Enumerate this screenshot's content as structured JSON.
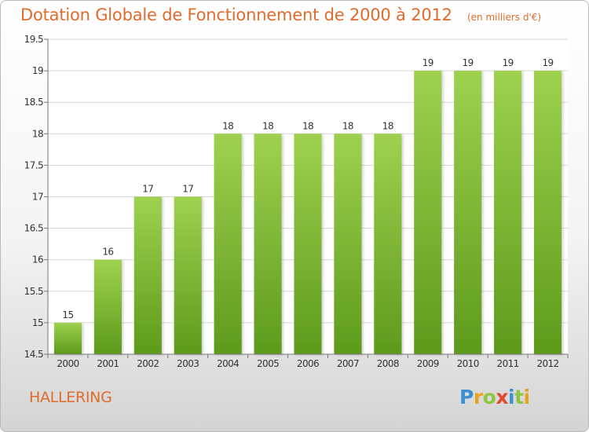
{
  "chart_data": {
    "type": "bar",
    "title": "Dotation Globale de Fonctionnement de 2000 à 2012",
    "subtitle": "(en milliers d'€)",
    "categories": [
      "2000",
      "2001",
      "2002",
      "2003",
      "2004",
      "2005",
      "2006",
      "2007",
      "2008",
      "2009",
      "2010",
      "2011",
      "2012"
    ],
    "values": [
      15,
      16,
      17,
      17,
      18,
      18,
      18,
      18,
      18,
      19,
      19,
      19,
      19
    ],
    "data_labels": [
      "15",
      "16",
      "17",
      "17",
      "18",
      "18",
      "18",
      "18",
      "18",
      "19",
      "19",
      "19",
      "19"
    ],
    "ylim": [
      14.5,
      19.5
    ],
    "yticks": [
      14.5,
      15,
      15.5,
      16,
      16.5,
      17,
      17.5,
      18,
      18.5,
      19,
      19.5
    ],
    "ytick_labels": [
      "14.5",
      "15",
      "15.5",
      "16",
      "16.5",
      "17",
      "17.5",
      "18",
      "18.5",
      "19",
      "19.5"
    ],
    "grid": true,
    "bar_color": "#8dc63f",
    "bar_color_dark": "#5e9a1c"
  },
  "footer": {
    "commune": "HALLERING",
    "logo_letters": [
      {
        "ch": "P",
        "color": "#3c8fd0"
      },
      {
        "ch": "r",
        "color": "#e8a21c"
      },
      {
        "ch": "o",
        "color": "#8cc63e"
      },
      {
        "ch": "x",
        "color": "#e04a2f"
      },
      {
        "ch": "i",
        "color": "#3c8fd0"
      },
      {
        "ch": "t",
        "color": "#8cc63e"
      },
      {
        "ch": "i",
        "color": "#e8a21c"
      }
    ]
  },
  "colors": {
    "title": "#e06b2c",
    "grid": "#d6d6d6",
    "axis_text": "#333333"
  }
}
